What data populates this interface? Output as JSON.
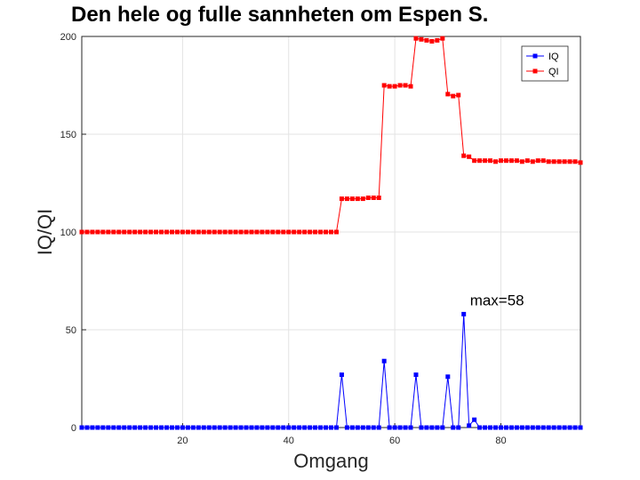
{
  "chart_data": {
    "type": "line",
    "title": "Den hele og fulle sannheten om Espen S.",
    "xlabel": "Omgang",
    "ylabel": "IQ/QI",
    "xlim": [
      1,
      95
    ],
    "ylim": [
      0,
      200
    ],
    "xticks": [
      20,
      40,
      60,
      80
    ],
    "yticks": [
      0,
      50,
      100,
      150,
      200
    ],
    "grid": true,
    "legend_position": "top-right",
    "annotation": {
      "text": "max=58",
      "x": 73,
      "y": 58
    },
    "series": [
      {
        "name": "IQ",
        "color": "#0000ff",
        "marker": "square",
        "x": [
          1,
          2,
          3,
          4,
          5,
          6,
          7,
          8,
          9,
          10,
          11,
          12,
          13,
          14,
          15,
          16,
          17,
          18,
          19,
          20,
          21,
          22,
          23,
          24,
          25,
          26,
          27,
          28,
          29,
          30,
          31,
          32,
          33,
          34,
          35,
          36,
          37,
          38,
          39,
          40,
          41,
          42,
          43,
          44,
          45,
          46,
          47,
          48,
          49,
          50,
          51,
          52,
          53,
          54,
          55,
          56,
          57,
          58,
          59,
          60,
          61,
          62,
          63,
          64,
          65,
          66,
          67,
          68,
          69,
          70,
          71,
          72,
          73,
          74,
          75,
          76,
          77,
          78,
          79,
          80,
          81,
          82,
          83,
          84,
          85,
          86,
          87,
          88,
          89,
          90,
          91,
          92,
          93,
          94,
          95
        ],
        "values": [
          0,
          0,
          0,
          0,
          0,
          0,
          0,
          0,
          0,
          0,
          0,
          0,
          0,
          0,
          0,
          0,
          0,
          0,
          0,
          0,
          0,
          0,
          0,
          0,
          0,
          0,
          0,
          0,
          0,
          0,
          0,
          0,
          0,
          0,
          0,
          0,
          0,
          0,
          0,
          0,
          0,
          0,
          0,
          0,
          0,
          0,
          0,
          0,
          0,
          27,
          0,
          0,
          0,
          0,
          0,
          0,
          0,
          34,
          0,
          0,
          0,
          0,
          0,
          27,
          0,
          0,
          0,
          0,
          0,
          26,
          0,
          0,
          58,
          1,
          4,
          0,
          0,
          0,
          0,
          0,
          0,
          0,
          0,
          0,
          0,
          0,
          0,
          0,
          0,
          0,
          0,
          0,
          0,
          0,
          0
        ]
      },
      {
        "name": "QI",
        "color": "#ff0000",
        "marker": "square",
        "x": [
          1,
          2,
          3,
          4,
          5,
          6,
          7,
          8,
          9,
          10,
          11,
          12,
          13,
          14,
          15,
          16,
          17,
          18,
          19,
          20,
          21,
          22,
          23,
          24,
          25,
          26,
          27,
          28,
          29,
          30,
          31,
          32,
          33,
          34,
          35,
          36,
          37,
          38,
          39,
          40,
          41,
          42,
          43,
          44,
          45,
          46,
          47,
          48,
          49,
          50,
          51,
          52,
          53,
          54,
          55,
          56,
          57,
          58,
          59,
          60,
          61,
          62,
          63,
          64,
          65,
          66,
          67,
          68,
          69,
          70,
          71,
          72,
          73,
          74,
          75,
          76,
          77,
          78,
          79,
          80,
          81,
          82,
          83,
          84,
          85,
          86,
          87,
          88,
          89,
          90,
          91,
          92,
          93,
          94,
          95
        ],
        "values": [
          100,
          100,
          100,
          100,
          100,
          100,
          100,
          100,
          100,
          100,
          100,
          100,
          100,
          100,
          100,
          100,
          100,
          100,
          100,
          100,
          100,
          100,
          100,
          100,
          100,
          100,
          100,
          100,
          100,
          100,
          100,
          100,
          100,
          100,
          100,
          100,
          100,
          100,
          100,
          100,
          100,
          100,
          100,
          100,
          100,
          100,
          100,
          100,
          100,
          117,
          117,
          117,
          117,
          117,
          117.5,
          117.5,
          117.5,
          175,
          174.5,
          174.5,
          175,
          175,
          174.5,
          199,
          198.5,
          198,
          197.5,
          198,
          199,
          170.5,
          169.5,
          170,
          139,
          138.5,
          136.5,
          136.5,
          136.5,
          136.5,
          136,
          136.5,
          136.5,
          136.5,
          136.5,
          136,
          136.5,
          136,
          136.5,
          136.5,
          136,
          136,
          136,
          136,
          136,
          136,
          135.5
        ]
      }
    ]
  }
}
